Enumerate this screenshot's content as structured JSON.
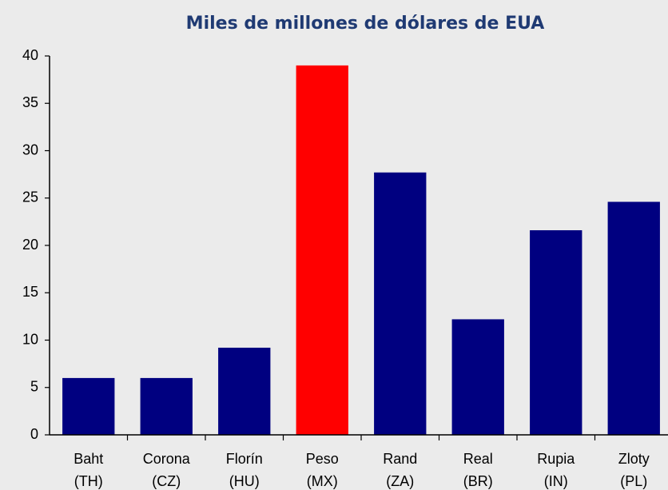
{
  "chart_data": {
    "type": "bar",
    "title": "Miles de millones de dólares de EUA",
    "categories": [
      [
        "Baht",
        "(TH)"
      ],
      [
        "Corona",
        "(CZ)"
      ],
      [
        "Florín",
        "(HU)"
      ],
      [
        "Peso",
        "(MX)"
      ],
      [
        "Rand",
        "(ZA)"
      ],
      [
        "Real",
        "(BR)"
      ],
      [
        "Rupia",
        "(IN)"
      ],
      [
        "Zloty",
        "(PL)"
      ]
    ],
    "values": [
      6,
      6,
      9.2,
      39,
      27.7,
      12.2,
      21.6,
      24.6
    ],
    "colors": [
      "#000080",
      "#000080",
      "#000080",
      "#ff0000",
      "#000080",
      "#000080",
      "#000080",
      "#000080"
    ],
    "ylim": [
      0,
      40
    ],
    "yticks": [
      0,
      5,
      10,
      15,
      20,
      25,
      30,
      35,
      40
    ],
    "grid": false
  }
}
